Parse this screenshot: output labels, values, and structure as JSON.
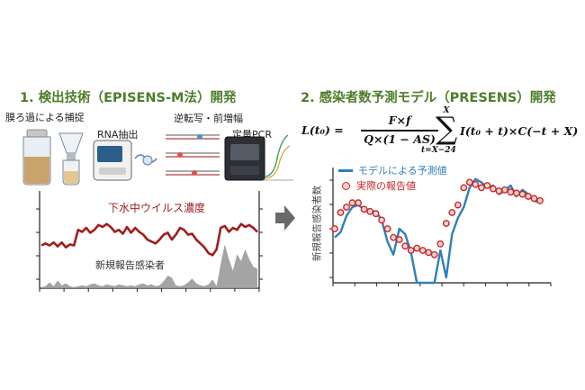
{
  "left_panel": {
    "heading": "1. 検出技術（EPISENS-M法）開発",
    "steps": {
      "filtration": "膜ろ過による捕捉",
      "rna_extraction": "RNA抽出",
      "reverse_transcription": "逆転写・前増幅",
      "qpcr": "定量PCR"
    },
    "chart": {
      "series_label_virus": "下水中ウイルス濃度",
      "series_label_cases": "新規報告感染者"
    }
  },
  "right_panel": {
    "heading": "2. 感染者数予測モデル（PRESENS）開発",
    "formula": {
      "lhs": "L(t₀) =",
      "numerator": "F×f",
      "denominator": "Q×(1 − AS)",
      "sum_upper": "X",
      "sum_lower": "t=X−24",
      "summand": "I(t₀ + t)×C(−t + X)"
    },
    "chart": {
      "ylabel": "新規報告感染者数",
      "legend_model": "モデルによる予測値",
      "legend_actual": "実際の報告値"
    }
  },
  "colors": {
    "heading": "#4e7d2b",
    "virus_line": "#a11d1d",
    "cases_area": "#9a9a9a",
    "model_line": "#2f7fb8",
    "actual_marker_edge": "#c62828",
    "actual_marker_fill": "#f7d3d3",
    "arrow": "#6a6a6a"
  },
  "chart_data": [
    {
      "type": "line",
      "series": [
        {
          "name": "下水中ウイルス濃度",
          "values": [
            0.44,
            0.46,
            0.44,
            0.47,
            0.43,
            0.47,
            0.42,
            0.45,
            0.44,
            0.6,
            0.58,
            0.62,
            0.57,
            0.6,
            0.65,
            0.63,
            0.66,
            0.63,
            0.58,
            0.6,
            0.56,
            0.63,
            0.57,
            0.62,
            0.58,
            0.55,
            0.5,
            0.48,
            0.46,
            0.5,
            0.55,
            0.57,
            0.5,
            0.55,
            0.62,
            0.6,
            0.55,
            0.56,
            0.5,
            0.46,
            0.42,
            0.36,
            0.34,
            0.4,
            0.62,
            0.64,
            0.58,
            0.62,
            0.6,
            0.66,
            0.63,
            0.65,
            0.62,
            0.58
          ]
        },
        {
          "name": "新規報告感染者",
          "values": [
            0.01,
            0.02,
            0.06,
            0.02,
            0.08,
            0.03,
            0.05,
            0.02,
            0.01,
            0.02,
            0.03,
            0.02,
            0.04,
            0.05,
            0.03,
            0.02,
            0.04,
            0.03,
            0.02,
            0.04,
            0.03,
            0.02,
            0.03,
            0.02,
            0.04,
            0.05,
            0.03,
            0.04,
            0.02,
            0.03,
            0.07,
            0.13,
            0.11,
            0.03,
            0.02,
            0.03,
            0.06,
            0.1,
            0.05,
            0.03,
            0.02,
            0.04,
            0.09,
            0.02,
            0.25,
            0.45,
            0.3,
            0.18,
            0.35,
            0.28,
            0.4,
            0.3,
            0.22,
            0.2
          ]
        }
      ]
    },
    {
      "type": "line",
      "series": [
        {
          "name": "モデルによる予測値",
          "values": [
            0.42,
            0.47,
            0.62,
            0.7,
            0.72,
            0.68,
            0.66,
            0.66,
            0.58,
            0.38,
            0.26,
            0.5,
            0.45,
            0.28,
            0.0,
            0.0,
            0.0,
            0.0,
            0.3,
            0.05,
            0.45,
            0.6,
            0.7,
            0.88,
            0.96,
            0.93,
            0.88,
            0.9,
            0.82,
            0.85,
            0.9,
            0.8,
            0.86,
            0.82,
            0.76,
            0.74
          ]
        },
        {
          "name": "実際の報告値",
          "values": [
            0.5,
            0.65,
            0.7,
            0.74,
            0.74,
            0.68,
            0.66,
            0.64,
            0.58,
            0.5,
            0.42,
            0.4,
            0.34,
            0.3,
            0.32,
            0.3,
            0.28,
            0.26,
            0.36,
            0.55,
            0.65,
            0.72,
            0.88,
            0.93,
            0.91,
            0.88,
            0.9,
            0.87,
            0.85,
            0.86,
            0.84,
            0.83,
            0.82,
            0.8,
            0.78,
            0.76
          ]
        }
      ]
    }
  ]
}
